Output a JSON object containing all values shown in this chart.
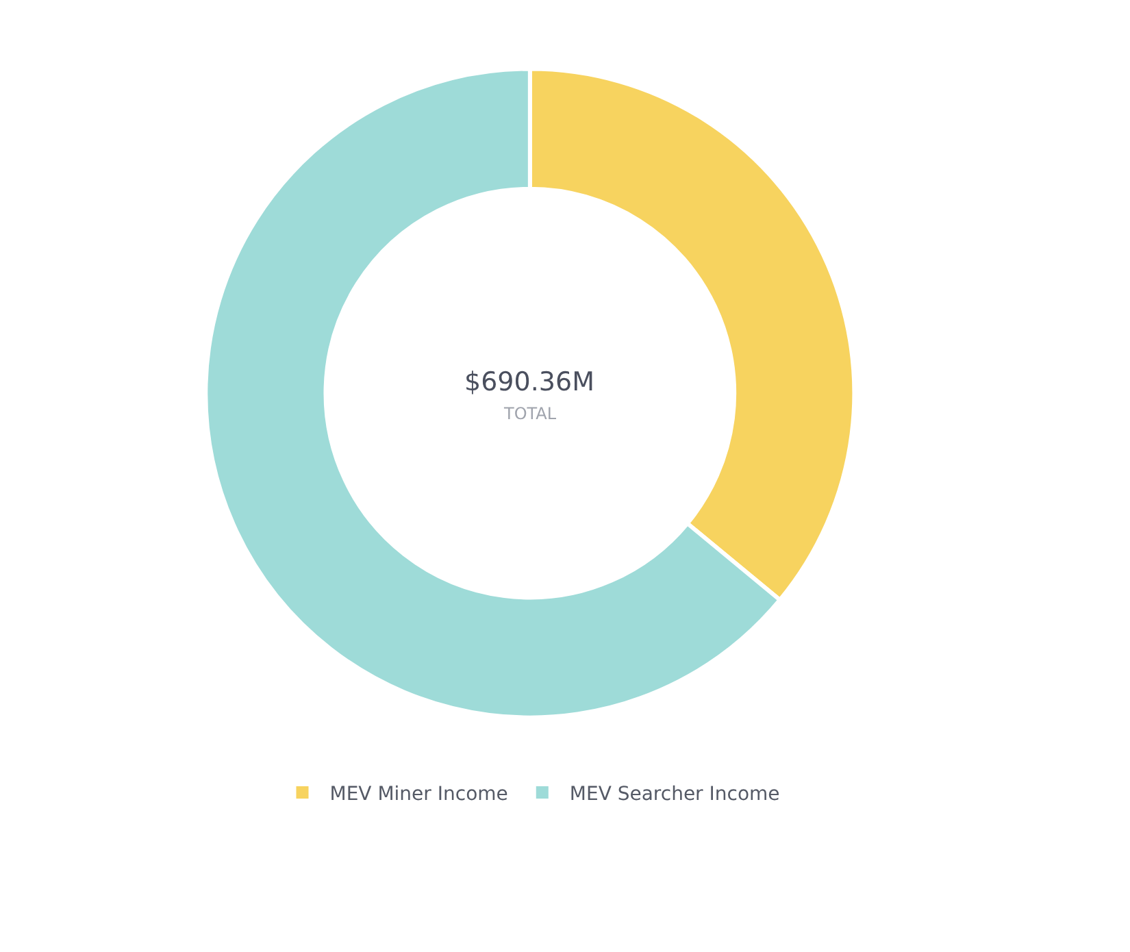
{
  "chart_data": {
    "type": "donut",
    "categories": [
      "MEV Miner Income",
      "MEV Searcher Income"
    ],
    "values": [
      36,
      64
    ],
    "colors": [
      "#f7d35f",
      "#9edbd8"
    ],
    "annotations": [
      "$690.36M",
      "TOTAL"
    ],
    "legend": "bottom"
  }
}
